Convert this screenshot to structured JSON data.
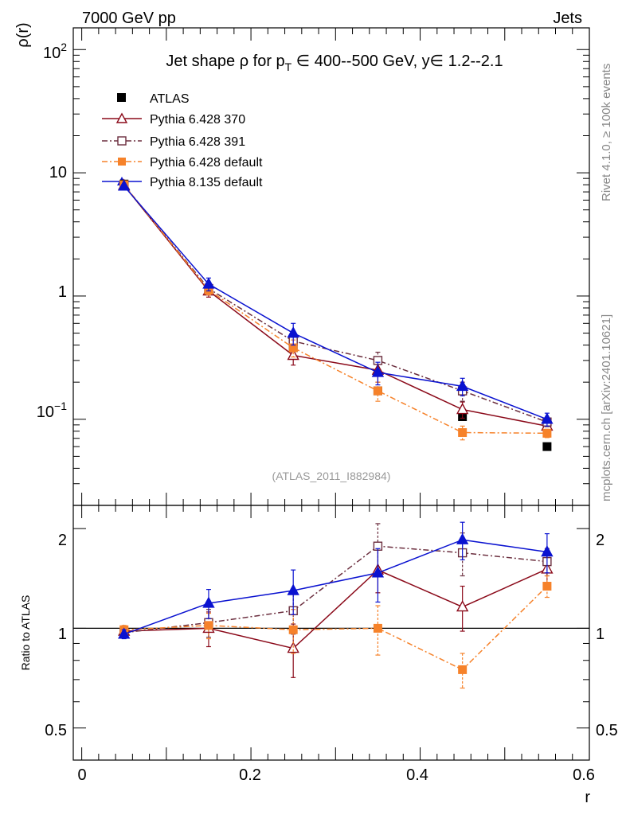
{
  "header": {
    "left": "7000 GeV pp",
    "right": "Jets"
  },
  "side": {
    "rivet": "Rivet 4.1.0, ≥ 100k events",
    "mcplots": "mcplots.cern.ch [arXiv:2401.10621]"
  },
  "watermark": "(ATLAS_2011_I882984)",
  "legend_items": [
    "ATLAS",
    "Pythia 6.428 370",
    "Pythia 6.428 391",
    "Pythia 6.428 default",
    "Pythia 8.135 default"
  ],
  "chart_data": [
    {
      "type": "line",
      "title": "Jet shape ρ for p_T ∈ 400--500 GeV, y∈ 1.2--2.1",
      "title_parts": {
        "prefix": "Jet shape ",
        "rho": "ρ",
        "for_p": " for p",
        "sub": "T",
        "rest": " ∈ 400--500 GeV, y∈ 1.2--2.1"
      },
      "ylabel": "ρ(r)",
      "yscale": "log",
      "ylim": [
        0.02,
        150
      ],
      "xlim": [
        -0.01,
        0.6
      ],
      "ytick_labels": [
        "10",
        "1"
      ],
      "ytick_sup_labels": [
        {
          "base": "10",
          "exp": "2"
        },
        {
          "base": "10",
          "exp": "−1"
        }
      ],
      "x": [
        0.05,
        0.15,
        0.25,
        0.35,
        0.45,
        0.55
      ],
      "series": [
        {
          "name": "ATLAS",
          "color": "#000000",
          "marker": "filled-square",
          "line": "none",
          "values": [
            8.1,
            1.1,
            0.38,
            0.17,
            0.105,
            0.06
          ],
          "errors": [
            0,
            0,
            0,
            0,
            0,
            0
          ]
        },
        {
          "name": "Pythia 6.428 370",
          "color": "#8b0a1a",
          "marker": "open-triangle",
          "line": "solid",
          "values": [
            7.9,
            1.1,
            0.33,
            0.25,
            0.12,
            0.088
          ],
          "errors": [
            0.25,
            0.12,
            0.055,
            0.05,
            0.018,
            0.009
          ]
        },
        {
          "name": "Pythia 6.428 391",
          "color": "#6b2e3e",
          "marker": "open-square",
          "line": "dashdot",
          "values": [
            7.9,
            1.15,
            0.43,
            0.3,
            0.17,
            0.095
          ],
          "errors": [
            0.25,
            0.1,
            0.07,
            0.05,
            0.03,
            0.008
          ]
        },
        {
          "name": "Pythia 6.428 default",
          "color": "#f6822a",
          "marker": "filled-square",
          "line": "dashdot",
          "values": [
            8.0,
            1.12,
            0.38,
            0.17,
            0.078,
            0.077
          ],
          "errors": [
            0.2,
            0.1,
            0.06,
            0.03,
            0.01,
            0.006
          ]
        },
        {
          "name": "Pythia 8.135 default",
          "color": "#0a12d0",
          "marker": "filled-triangle",
          "line": "solid",
          "values": [
            7.8,
            1.25,
            0.5,
            0.24,
            0.185,
            0.1
          ],
          "errors": [
            0.25,
            0.15,
            0.1,
            0.05,
            0.03,
            0.012
          ]
        }
      ]
    },
    {
      "type": "line",
      "title": "",
      "xlabel": "r",
      "ylabel": "Ratio to ATLAS",
      "ylim": [
        0.4,
        2.35
      ],
      "xlim": [
        -0.01,
        0.6
      ],
      "yticks": [
        0.5,
        1,
        2
      ],
      "ytick_labels": [
        "0.5",
        "1",
        "2"
      ],
      "xticks": [
        0,
        0.2,
        0.4,
        0.6
      ],
      "xtick_labels": [
        "0",
        "0.2",
        "0.4",
        "0.6"
      ],
      "reference_line": 1,
      "x": [
        0.05,
        0.15,
        0.25,
        0.35,
        0.45,
        0.55
      ],
      "series": [
        {
          "name": "Pythia 6.428 370",
          "color": "#8b0a1a",
          "marker": "open-triangle",
          "line": "solid",
          "values": [
            0.98,
            1.0,
            0.87,
            1.5,
            1.16,
            1.51
          ],
          "errors": [
            0.03,
            0.12,
            0.16,
            0.22,
            0.18,
            0.17
          ]
        },
        {
          "name": "Pythia 6.428 391",
          "color": "#6b2e3e",
          "marker": "open-square",
          "line": "dashdot",
          "values": [
            0.97,
            1.04,
            1.13,
            1.77,
            1.69,
            1.59
          ],
          "errors": [
            0.03,
            0.1,
            0.17,
            0.3,
            0.25,
            0.15
          ]
        },
        {
          "name": "Pythia 6.428 default",
          "color": "#f6822a",
          "marker": "filled-square",
          "line": "dashdot",
          "values": [
            0.99,
            1.02,
            0.99,
            1.0,
            0.75,
            1.34
          ],
          "errors": [
            0.03,
            0.09,
            0.15,
            0.17,
            0.09,
            0.1
          ]
        },
        {
          "name": "Pythia 8.135 default",
          "color": "#0a12d0",
          "marker": "filled-triangle",
          "line": "solid",
          "values": [
            0.96,
            1.19,
            1.3,
            1.47,
            1.85,
            1.7
          ],
          "errors": [
            0.03,
            0.12,
            0.2,
            0.27,
            0.24,
            0.23
          ]
        }
      ]
    }
  ]
}
